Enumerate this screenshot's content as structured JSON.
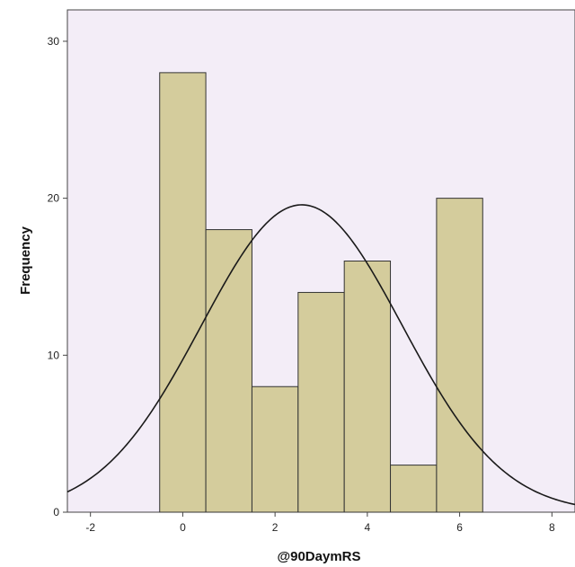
{
  "chart_data": {
    "type": "bar",
    "subtype": "histogram",
    "xlabel": "@90DaymRS",
    "ylabel": "Frequency",
    "xlim": [
      -2.5,
      8.5
    ],
    "ylim": [
      0,
      32
    ],
    "x_ticks": [
      "-2",
      "0",
      "2",
      "4",
      "6",
      "8"
    ],
    "y_ticks": [
      "0",
      "10",
      "20",
      "30"
    ],
    "bins": [
      {
        "center": 0,
        "count": 28
      },
      {
        "center": 1,
        "count": 18
      },
      {
        "center": 2,
        "count": 8
      },
      {
        "center": 3,
        "count": 14
      },
      {
        "center": 4,
        "count": 16
      },
      {
        "center": 5,
        "count": 3
      },
      {
        "center": 6,
        "count": 20
      }
    ],
    "bin_width": 1,
    "normal_curve": {
      "mean": 2.58,
      "std_dev": 2.18,
      "n": 107
    },
    "grid": false,
    "colors": {
      "plot_background": "#f3edf7",
      "bar_fill": "#d4cc9c",
      "bar_edge": "#333333",
      "curve": "#1a1a1a"
    }
  }
}
